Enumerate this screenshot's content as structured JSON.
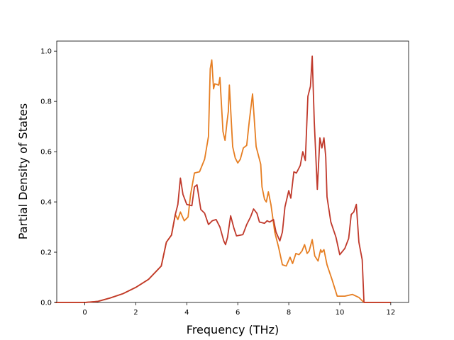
{
  "chart_data": {
    "type": "line",
    "xlabel": "Frequency (THz)",
    "ylabel": "Partial Density of States",
    "xlim": [
      -1.1,
      12.7
    ],
    "ylim": [
      0,
      1.04
    ],
    "xticks": [
      "0",
      "2",
      "4",
      "6",
      "8",
      "10",
      "12"
    ],
    "yticks": [
      "0.0",
      "0.2",
      "0.4",
      "0.6",
      "0.8",
      "1.0"
    ],
    "grid": false,
    "legend": "none",
    "series": [
      {
        "color": "#e67e22",
        "points": [
          [
            -1.15,
            0.0
          ],
          [
            0.0,
            0.0
          ],
          [
            0.5,
            0.004
          ],
          [
            1.0,
            0.018
          ],
          [
            1.5,
            0.035
          ],
          [
            2.0,
            0.06
          ],
          [
            2.5,
            0.092
          ],
          [
            3.0,
            0.145
          ],
          [
            3.2,
            0.24
          ],
          [
            3.4,
            0.268
          ],
          [
            3.55,
            0.35
          ],
          [
            3.65,
            0.33
          ],
          [
            3.75,
            0.36
          ],
          [
            3.9,
            0.325
          ],
          [
            4.05,
            0.34
          ],
          [
            4.15,
            0.43
          ],
          [
            4.3,
            0.515
          ],
          [
            4.5,
            0.52
          ],
          [
            4.7,
            0.57
          ],
          [
            4.85,
            0.66
          ],
          [
            4.92,
            0.93
          ],
          [
            4.98,
            0.965
          ],
          [
            5.05,
            0.85
          ],
          [
            5.1,
            0.87
          ],
          [
            5.25,
            0.865
          ],
          [
            5.3,
            0.895
          ],
          [
            5.42,
            0.68
          ],
          [
            5.5,
            0.645
          ],
          [
            5.58,
            0.72
          ],
          [
            5.63,
            0.76
          ],
          [
            5.67,
            0.865
          ],
          [
            5.8,
            0.62
          ],
          [
            5.9,
            0.575
          ],
          [
            6.0,
            0.555
          ],
          [
            6.1,
            0.57
          ],
          [
            6.22,
            0.615
          ],
          [
            6.35,
            0.625
          ],
          [
            6.45,
            0.72
          ],
          [
            6.58,
            0.83
          ],
          [
            6.72,
            0.62
          ],
          [
            6.9,
            0.55
          ],
          [
            6.95,
            0.46
          ],
          [
            7.05,
            0.41
          ],
          [
            7.12,
            0.4
          ],
          [
            7.2,
            0.44
          ],
          [
            7.3,
            0.39
          ],
          [
            7.45,
            0.28
          ],
          [
            7.6,
            0.22
          ],
          [
            7.75,
            0.15
          ],
          [
            7.9,
            0.145
          ],
          [
            8.05,
            0.18
          ],
          [
            8.15,
            0.155
          ],
          [
            8.28,
            0.195
          ],
          [
            8.4,
            0.19
          ],
          [
            8.52,
            0.205
          ],
          [
            8.62,
            0.23
          ],
          [
            8.72,
            0.195
          ],
          [
            8.8,
            0.205
          ],
          [
            8.92,
            0.25
          ],
          [
            9.02,
            0.185
          ],
          [
            9.15,
            0.165
          ],
          [
            9.25,
            0.21
          ],
          [
            9.3,
            0.2
          ],
          [
            9.38,
            0.21
          ],
          [
            9.5,
            0.15
          ],
          [
            9.7,
            0.09
          ],
          [
            9.9,
            0.025
          ],
          [
            10.2,
            0.025
          ],
          [
            10.5,
            0.032
          ],
          [
            10.75,
            0.02
          ],
          [
            10.95,
            0.0
          ],
          [
            12.0,
            0.0
          ]
        ]
      },
      {
        "color": "#c0392b",
        "points": [
          [
            -1.15,
            0.0
          ],
          [
            0.0,
            0.0
          ],
          [
            0.5,
            0.004
          ],
          [
            1.0,
            0.018
          ],
          [
            1.5,
            0.035
          ],
          [
            2.0,
            0.06
          ],
          [
            2.5,
            0.092
          ],
          [
            3.0,
            0.145
          ],
          [
            3.2,
            0.24
          ],
          [
            3.4,
            0.268
          ],
          [
            3.55,
            0.35
          ],
          [
            3.65,
            0.39
          ],
          [
            3.75,
            0.495
          ],
          [
            3.85,
            0.43
          ],
          [
            4.0,
            0.39
          ],
          [
            4.2,
            0.385
          ],
          [
            4.3,
            0.46
          ],
          [
            4.4,
            0.468
          ],
          [
            4.55,
            0.37
          ],
          [
            4.7,
            0.355
          ],
          [
            4.85,
            0.31
          ],
          [
            5.0,
            0.325
          ],
          [
            5.15,
            0.33
          ],
          [
            5.3,
            0.3
          ],
          [
            5.45,
            0.245
          ],
          [
            5.52,
            0.23
          ],
          [
            5.6,
            0.26
          ],
          [
            5.72,
            0.345
          ],
          [
            5.85,
            0.295
          ],
          [
            5.95,
            0.265
          ],
          [
            6.2,
            0.27
          ],
          [
            6.35,
            0.31
          ],
          [
            6.5,
            0.34
          ],
          [
            6.62,
            0.372
          ],
          [
            6.75,
            0.355
          ],
          [
            6.85,
            0.32
          ],
          [
            7.05,
            0.315
          ],
          [
            7.15,
            0.325
          ],
          [
            7.25,
            0.32
          ],
          [
            7.4,
            0.33
          ],
          [
            7.5,
            0.28
          ],
          [
            7.65,
            0.245
          ],
          [
            7.75,
            0.28
          ],
          [
            7.85,
            0.38
          ],
          [
            8.0,
            0.445
          ],
          [
            8.08,
            0.415
          ],
          [
            8.2,
            0.52
          ],
          [
            8.3,
            0.515
          ],
          [
            8.45,
            0.545
          ],
          [
            8.55,
            0.6
          ],
          [
            8.65,
            0.565
          ],
          [
            8.75,
            0.82
          ],
          [
            8.85,
            0.86
          ],
          [
            8.92,
            0.98
          ],
          [
            9.0,
            0.72
          ],
          [
            9.12,
            0.45
          ],
          [
            9.22,
            0.655
          ],
          [
            9.3,
            0.615
          ],
          [
            9.38,
            0.655
          ],
          [
            9.45,
            0.58
          ],
          [
            9.5,
            0.42
          ],
          [
            9.65,
            0.32
          ],
          [
            9.85,
            0.26
          ],
          [
            10.0,
            0.19
          ],
          [
            10.2,
            0.215
          ],
          [
            10.35,
            0.255
          ],
          [
            10.45,
            0.35
          ],
          [
            10.55,
            0.36
          ],
          [
            10.65,
            0.39
          ],
          [
            10.75,
            0.24
          ],
          [
            10.88,
            0.17
          ],
          [
            10.95,
            0.0
          ],
          [
            12.0,
            0.0
          ]
        ]
      }
    ]
  }
}
